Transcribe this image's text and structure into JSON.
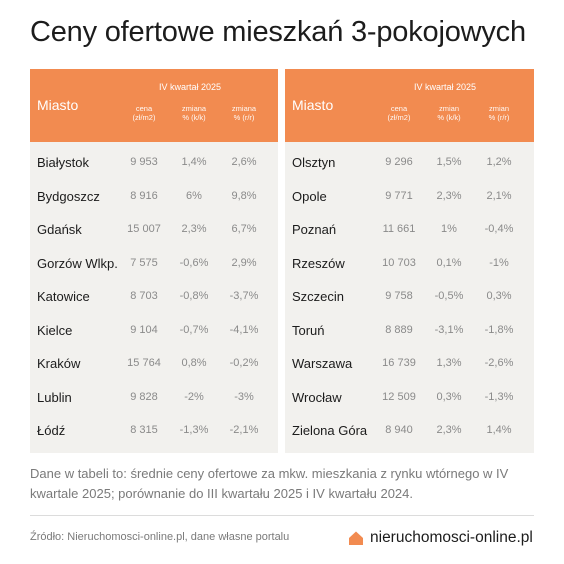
{
  "title": "Ceny ofertowe mieszkań 3-pokojowych",
  "table_headers": {
    "city": "Miasto",
    "quarter": "IV kwartał 2025",
    "left_cols": [
      "cena\n(zł/m2)",
      "zmiana\n% (k/k)",
      "zmiana\n% (r/r)"
    ],
    "right_cols": [
      "cena\n(zł/m2)",
      "zmian\n% (k/k)",
      "zmian\n% (r/r)"
    ]
  },
  "left_rows": [
    {
      "city": "Białystok",
      "price": "9 953",
      "qq": "1,4%",
      "yy": "2,6%"
    },
    {
      "city": "Bydgoszcz",
      "price": "8 916",
      "qq": "6%",
      "yy": "9,8%"
    },
    {
      "city": "Gdańsk",
      "price": "15 007",
      "qq": "2,3%",
      "yy": "6,7%"
    },
    {
      "city": "Gorzów Wlkp.",
      "price": "7 575",
      "qq": "-0,6%",
      "yy": "2,9%"
    },
    {
      "city": "Katowice",
      "price": "8 703",
      "qq": "-0,8%",
      "yy": "-3,7%"
    },
    {
      "city": "Kielce",
      "price": "9 104",
      "qq": "-0,7%",
      "yy": "-4,1%"
    },
    {
      "city": "Kraków",
      "price": "15 764",
      "qq": "0,8%",
      "yy": "-0,2%"
    },
    {
      "city": "Lublin",
      "price": "9 828",
      "qq": "-2%",
      "yy": "-3%"
    },
    {
      "city": "Łódź",
      "price": "8 315",
      "qq": "-1,3%",
      "yy": "-2,1%"
    }
  ],
  "right_rows": [
    {
      "city": "Olsztyn",
      "price": "9 296",
      "qq": "1,5%",
      "yy": "1,2%"
    },
    {
      "city": "Opole",
      "price": "9 771",
      "qq": "2,3%",
      "yy": "2,1%"
    },
    {
      "city": "Poznań",
      "price": "11 661",
      "qq": "1%",
      "yy": "-0,4%"
    },
    {
      "city": "Rzeszów",
      "price": "10 703",
      "qq": "0,1%",
      "yy": "-1%"
    },
    {
      "city": "Szczecin",
      "price": "9 758",
      "qq": "-0,5%",
      "yy": "0,3%"
    },
    {
      "city": "Toruń",
      "price": "8 889",
      "qq": "-3,1%",
      "yy": "-1,8%"
    },
    {
      "city": "Warszawa",
      "price": "16 739",
      "qq": "1,3%",
      "yy": "-2,6%"
    },
    {
      "city": "Wrocław",
      "price": "12 509",
      "qq": "0,3%",
      "yy": "-1,3%"
    },
    {
      "city": "Zielona Góra",
      "price": "8 940",
      "qq": "2,3%",
      "yy": "1,4%"
    }
  ],
  "note": "Dane w tabeli to: średnie ceny ofertowe za mkw. mieszkania z rynku wtórnego w IV kwartale 2025; porównanie do III kwartału 2025 i IV kwartału 2024.",
  "source": "Źródło: Nieruchomosci-online.pl, dane własne portalu",
  "brand": {
    "name": "nieruchomosci-online.pl",
    "icon": "house-icon",
    "color": "#f28b50"
  },
  "colors": {
    "header": "#f28b50",
    "panel": "#f2f1ee"
  }
}
